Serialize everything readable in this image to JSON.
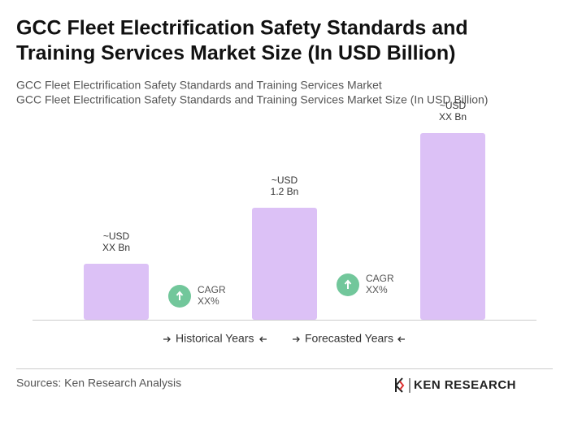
{
  "title": [
    "GCC Fleet Electrification Safety Standards and",
    "Training Services Market Size (In USD Billion)"
  ],
  "subtitle": [
    "GCC Fleet Electrification Safety Standards and Training Services Market",
    "GCC Fleet Electrification Safety Standards and Training Services Market Size (In USD Billion)"
  ],
  "chart_data": {
    "type": "bar",
    "values": [
      0.6,
      1.2,
      2.0
    ],
    "value_labels": [
      [
        "~USD",
        "XX Bn"
      ],
      [
        "~USD",
        "1.2 Bn"
      ],
      [
        "~USD",
        "XX Bn"
      ]
    ],
    "color": "#dcc1f6",
    "annotations": [
      {
        "label": [
          "CAGR",
          "XX%"
        ],
        "color": "#72c79b"
      },
      {
        "label": [
          "CAGR",
          "XX%"
        ],
        "color": "#72c79b"
      }
    ],
    "legend": [
      "Historical Years",
      "Forecasted Years"
    ]
  },
  "source": "Sources: Ken Research Analysis",
  "logo": "KEN RESEARCH"
}
